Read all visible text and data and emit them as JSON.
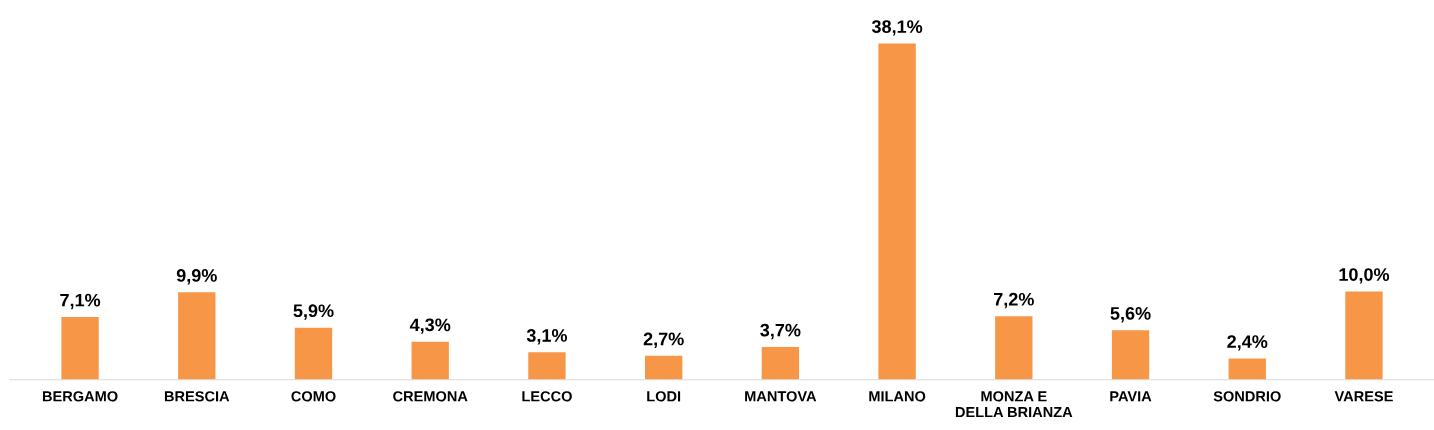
{
  "chart_data": {
    "type": "bar",
    "categories": [
      "BERGAMO",
      "BRESCIA",
      "COMO",
      "CREMONA",
      "LECCO",
      "LODI",
      "MANTOVA",
      "MILANO",
      "MONZA E\nDELLA BRIANZA",
      "PAVIA",
      "SONDRIO",
      "VARESE"
    ],
    "values": [
      7.1,
      9.9,
      5.9,
      4.3,
      3.1,
      2.7,
      3.7,
      38.1,
      7.2,
      5.6,
      2.4,
      10.0
    ],
    "value_labels": [
      "7,1%",
      "9,9%",
      "5,9%",
      "4,3%",
      "3,1%",
      "2,7%",
      "3,7%",
      "38,1%",
      "7,2%",
      "5,6%",
      "2,4%",
      "10,0%"
    ],
    "color": "#f79646"
  }
}
